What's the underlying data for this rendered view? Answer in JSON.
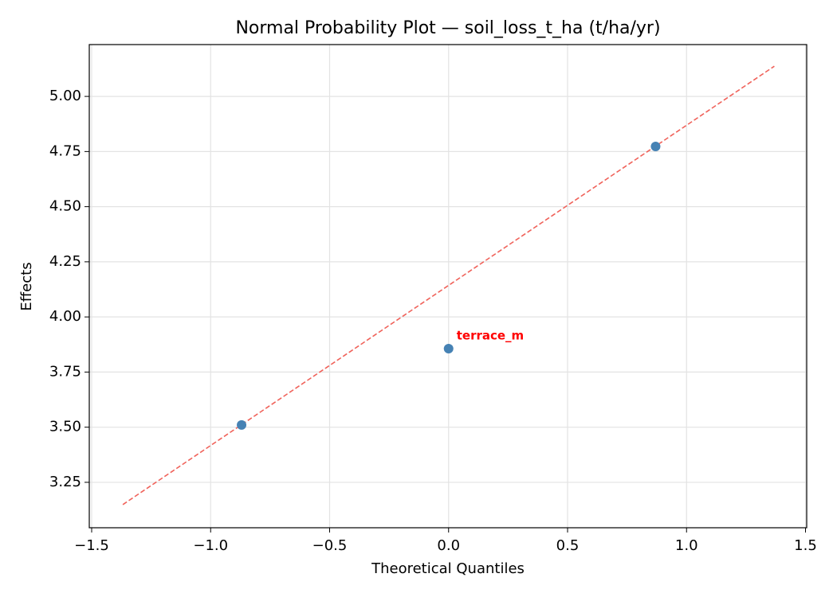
{
  "chart_data": {
    "type": "scatter",
    "title": "Normal Probability Plot — soil_loss_t_ha (t/ha/yr)",
    "x_label": "Theoretical Quantiles",
    "y_label": "Effects",
    "x": [
      -0.87,
      0.0,
      0.87
    ],
    "values": [
      3.51,
      3.856,
      4.773
    ],
    "point_labels": [
      null,
      "terrace_m",
      null
    ],
    "color": "#4682b4",
    "label_color": "#ff0000",
    "reference_line": {
      "x": [
        -1.369,
        1.369
      ],
      "y": [
        3.149,
        5.137
      ],
      "color": "#f0625a",
      "dashed": true
    },
    "xlim": [
      -1.51,
      1.505
    ],
    "ylim": [
      3.044,
      5.235
    ],
    "xticks": [
      {
        "value": -1.5,
        "label": "−1.5"
      },
      {
        "value": -1.0,
        "label": "−1.0"
      },
      {
        "value": -0.5,
        "label": "−0.5"
      },
      {
        "value": 0.0,
        "label": "0.0"
      },
      {
        "value": 0.5,
        "label": "0.5"
      },
      {
        "value": 1.0,
        "label": "1.0"
      },
      {
        "value": 1.5,
        "label": "1.5"
      }
    ],
    "yticks": [
      3.25,
      {
        "value": 3.5,
        "label": "3.50"
      },
      3.75,
      {
        "value": 4.0,
        "label": "4.00"
      },
      4.25,
      {
        "value": 4.5,
        "label": "4.50"
      },
      4.75,
      {
        "value": 5.0,
        "label": "5.00"
      }
    ],
    "grid": true
  }
}
